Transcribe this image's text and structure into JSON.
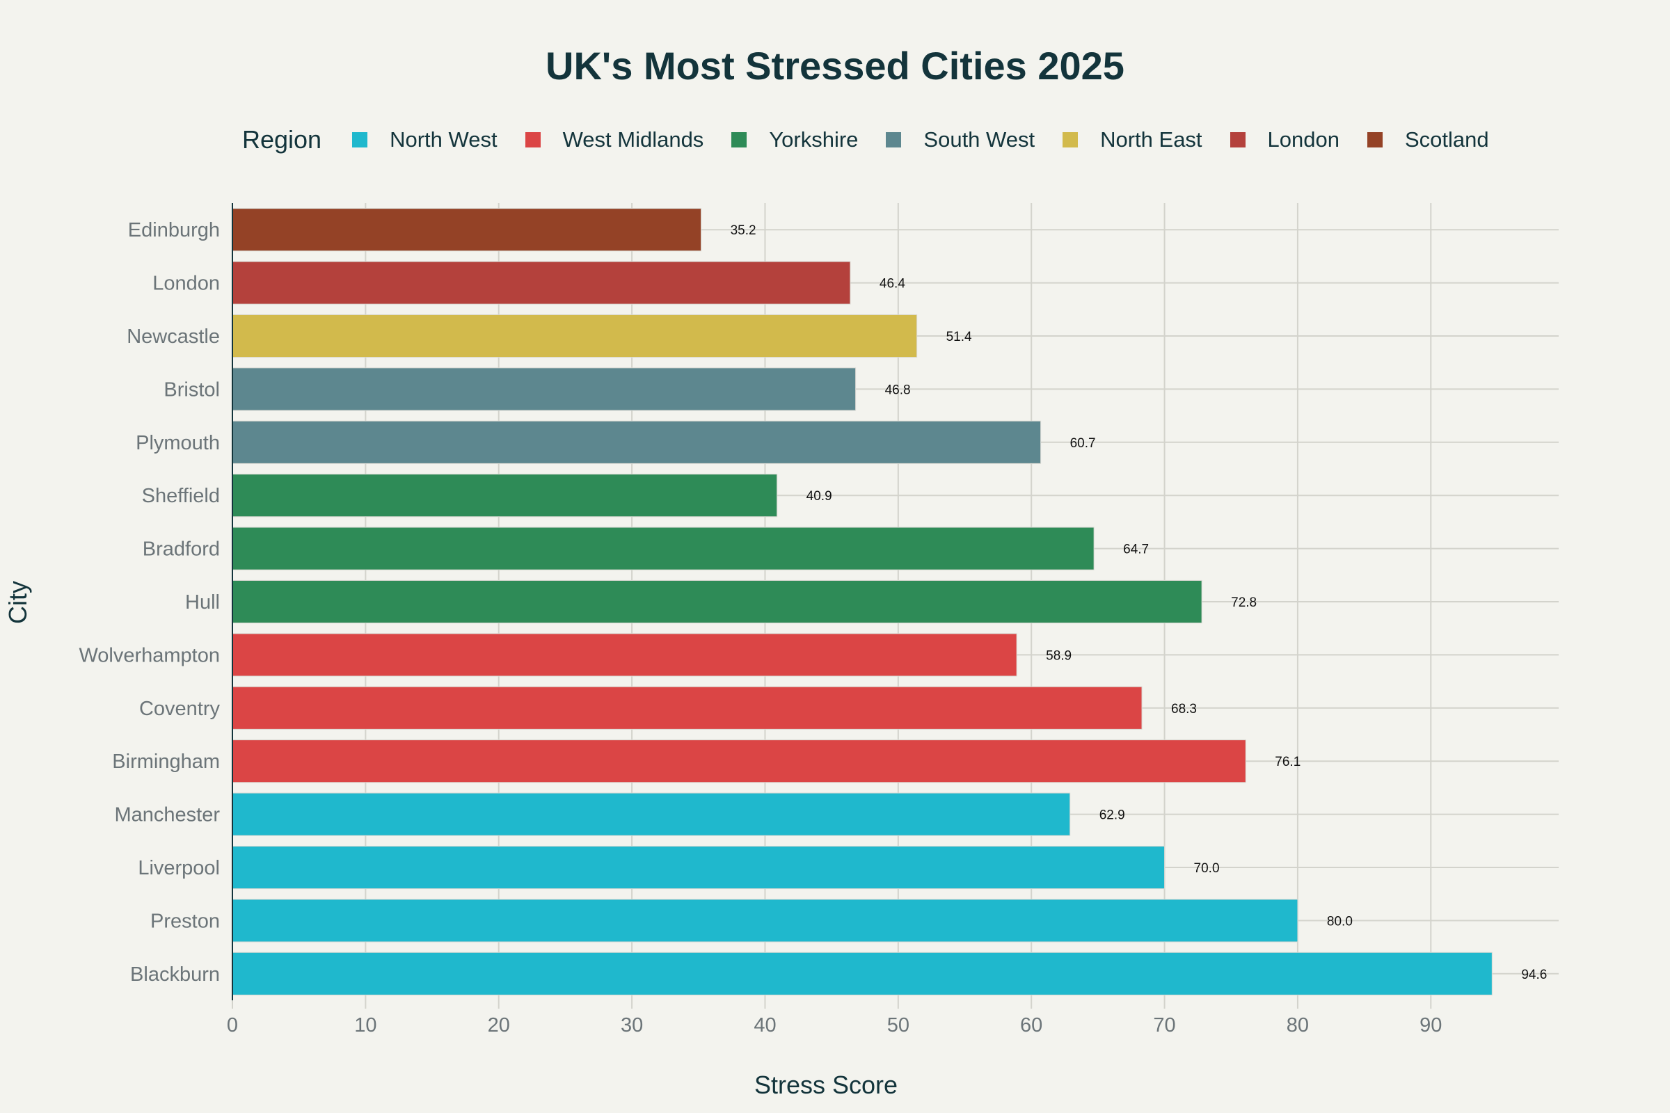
{
  "chart_data": {
    "type": "bar",
    "orientation": "horizontal",
    "title": "UK's Most Stressed Cities 2025",
    "xlabel": "Stress Score",
    "ylabel": "City",
    "xlim": [
      0,
      99.6
    ],
    "xticks": [
      0,
      10,
      20,
      30,
      40,
      50,
      60,
      70,
      80,
      90
    ],
    "grid": true,
    "legend": {
      "title": "Region",
      "placement": "top"
    },
    "series": [
      {
        "name": "North West",
        "color": "#1fb8cd"
      },
      {
        "name": "West Midlands",
        "color": "#db4545"
      },
      {
        "name": "Yorkshire",
        "color": "#2e8b57"
      },
      {
        "name": "South West",
        "color": "#5d878f"
      },
      {
        "name": "North East",
        "color": "#d2ba4c"
      },
      {
        "name": "London",
        "color": "#b4413c"
      },
      {
        "name": "Scotland",
        "color": "#944454"
      }
    ],
    "bars": [
      {
        "city": "Blackburn",
        "value": 94.6,
        "label": "94.6",
        "region": "North West"
      },
      {
        "city": "Preston",
        "value": 80.0,
        "label": "80.0",
        "region": "North West"
      },
      {
        "city": "Liverpool",
        "value": 70.0,
        "label": "70.0",
        "region": "North West"
      },
      {
        "city": "Manchester",
        "value": 62.9,
        "label": "62.9",
        "region": "North West"
      },
      {
        "city": "Birmingham",
        "value": 76.1,
        "label": "76.1",
        "region": "West Midlands"
      },
      {
        "city": "Coventry",
        "value": 68.3,
        "label": "68.3",
        "region": "West Midlands"
      },
      {
        "city": "Wolverhampton",
        "value": 58.9,
        "label": "58.9",
        "region": "West Midlands"
      },
      {
        "city": "Hull",
        "value": 72.8,
        "label": "72.8",
        "region": "Yorkshire"
      },
      {
        "city": "Bradford",
        "value": 64.7,
        "label": "64.7",
        "region": "Yorkshire"
      },
      {
        "city": "Sheffield",
        "value": 40.9,
        "label": "40.9",
        "region": "Yorkshire"
      },
      {
        "city": "Plymouth",
        "value": 60.7,
        "label": "60.7",
        "region": "South West"
      },
      {
        "city": "Bristol",
        "value": 46.8,
        "label": "46.8",
        "region": "South West"
      },
      {
        "city": "Newcastle",
        "value": 51.4,
        "label": "51.4",
        "region": "North East"
      },
      {
        "city": "London",
        "value": 46.4,
        "label": "46.4",
        "region": "London"
      },
      {
        "city": "Edinburgh",
        "value": 35.2,
        "label": "35.2",
        "region": "Scotland"
      }
    ]
  }
}
